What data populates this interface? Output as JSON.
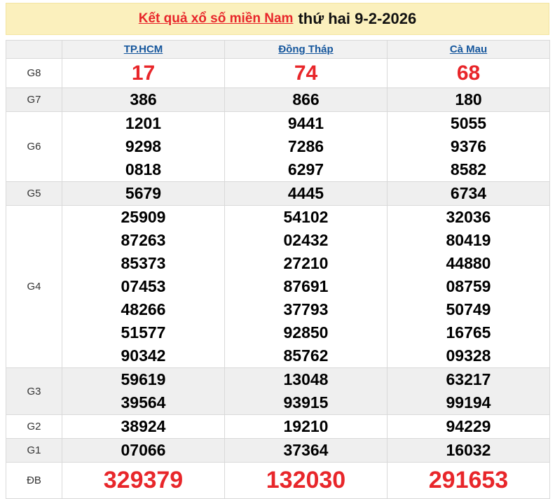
{
  "title": {
    "link": "Kết quả xổ số miền Nam",
    "suffix": "thứ hai 9-2-2026"
  },
  "table": {
    "columns": [
      "TP.HCM",
      "Đồng Tháp",
      "Cà Mau"
    ],
    "rows": [
      {
        "label": "G8",
        "style": "red-large",
        "values": [
          [
            "17"
          ],
          [
            "74"
          ],
          [
            "68"
          ]
        ]
      },
      {
        "label": "G7",
        "style": "",
        "values": [
          [
            "386"
          ],
          [
            "866"
          ],
          [
            "180"
          ]
        ]
      },
      {
        "label": "G6",
        "style": "",
        "values": [
          [
            "1201",
            "9298",
            "0818"
          ],
          [
            "9441",
            "7286",
            "6297"
          ],
          [
            "5055",
            "9376",
            "8582"
          ]
        ]
      },
      {
        "label": "G5",
        "style": "",
        "values": [
          [
            "5679"
          ],
          [
            "4445"
          ],
          [
            "6734"
          ]
        ]
      },
      {
        "label": "G4",
        "style": "",
        "values": [
          [
            "25909",
            "87263",
            "85373",
            "07453",
            "48266",
            "51577",
            "90342"
          ],
          [
            "54102",
            "02432",
            "27210",
            "87691",
            "37793",
            "92850",
            "85762"
          ],
          [
            "32036",
            "80419",
            "44880",
            "08759",
            "50749",
            "16765",
            "09328"
          ]
        ]
      },
      {
        "label": "G3",
        "style": "",
        "values": [
          [
            "59619",
            "39564"
          ],
          [
            "13048",
            "93915"
          ],
          [
            "63217",
            "99194"
          ]
        ]
      },
      {
        "label": "G2",
        "style": "",
        "values": [
          [
            "38924"
          ],
          [
            "19210"
          ],
          [
            "94229"
          ]
        ]
      },
      {
        "label": "G1",
        "style": "",
        "values": [
          [
            "07066"
          ],
          [
            "37364"
          ],
          [
            "16032"
          ]
        ]
      },
      {
        "label": "ĐB",
        "style": "red-xlarge",
        "values": [
          [
            "329379"
          ],
          [
            "132030"
          ],
          [
            "291653"
          ]
        ]
      }
    ]
  },
  "colors": {
    "banner_background": "#fbf0bd",
    "accent_red": "#e8262a",
    "link_blue": "#15569c",
    "zebra_gray": "#efefef",
    "border_gray": "#d9d9d9"
  }
}
